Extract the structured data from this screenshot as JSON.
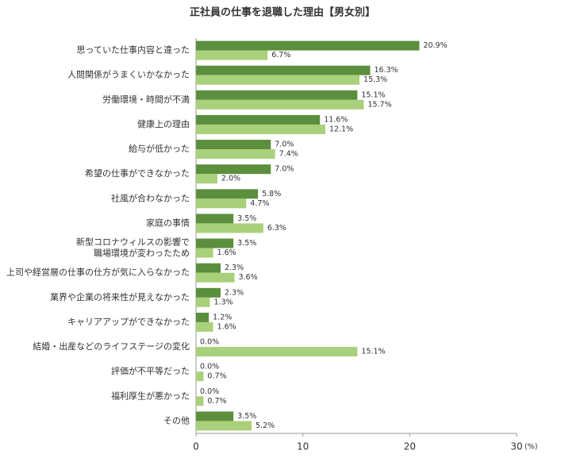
{
  "chart_data": {
    "type": "bar",
    "orientation": "horizontal",
    "title": "正社員の仕事を退職した理由【男女別】",
    "categories": [
      "思っていた仕事内容と違った",
      "人間関係がうまくいかなかった",
      "労働環境・時間が不満",
      "健康上の理由",
      "給与が低かった",
      "希望の仕事ができなかった",
      "社風が合わなかった",
      "家庭の事情",
      "新型コロナウィルスの影響で\n職場環境が変わったため",
      "上司や経営層の仕事の仕方が気に入らなかった",
      "業界や企業の将来性が見えなかった",
      "キャリアアップができなかった",
      "結婚・出産などのライフステージの変化",
      "評価が不平等だった",
      "福利厚生が悪かった",
      "その他"
    ],
    "series": [
      {
        "color": "#5b8f3d",
        "values": [
          20.9,
          16.3,
          15.1,
          11.6,
          7.0,
          7.0,
          5.8,
          3.5,
          3.5,
          2.3,
          2.3,
          1.2,
          0.0,
          0.0,
          0.0,
          3.5
        ],
        "value_labels": [
          "20.9%",
          "16.3%",
          "15.1%",
          "11.6%",
          "7.0%",
          "7.0%",
          "5.8%",
          "3.5%",
          "3.5%",
          "2.3%",
          "2.3%",
          "1.2%",
          "0.0%",
          "0.0%",
          "0.0%",
          "3.5%"
        ]
      },
      {
        "color": "#a9d07a",
        "values": [
          6.7,
          15.3,
          15.7,
          12.1,
          7.4,
          2.0,
          4.7,
          6.3,
          1.6,
          3.6,
          1.3,
          1.6,
          15.1,
          0.7,
          0.7,
          5.2
        ],
        "value_labels": [
          "6.7%",
          "15.3%",
          "15.7%",
          "12.1%",
          "7.4%",
          "2.0%",
          "4.7%",
          "6.3%",
          "1.6%",
          "3.6%",
          "1.3%",
          "1.6%",
          "15.1%",
          "0.7%",
          "0.7%",
          "5.2%"
        ]
      }
    ],
    "xlim": [
      0,
      30
    ],
    "xticks": [
      0,
      10,
      20,
      30
    ],
    "x_unit": "(%)"
  }
}
